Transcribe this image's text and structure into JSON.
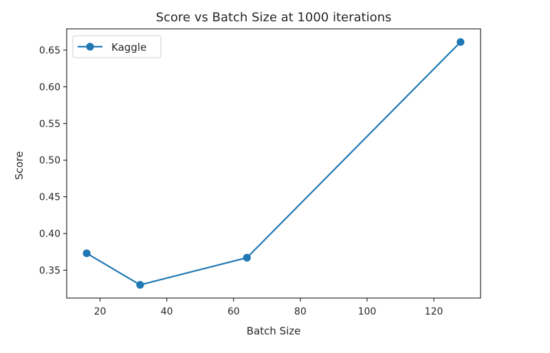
{
  "chart_data": {
    "type": "line",
    "title": "Score vs Batch Size at 1000 iterations",
    "xlabel": "Batch Size",
    "ylabel": "Score",
    "xlim": [
      10,
      134
    ],
    "ylim": [
      0.312,
      0.679
    ],
    "xticks": [
      20,
      40,
      60,
      80,
      100,
      120
    ],
    "yticks": [
      0.35,
      0.4,
      0.45,
      0.5,
      0.55,
      0.6,
      0.65
    ],
    "ytick_labels": [
      "0.35",
      "0.40",
      "0.45",
      "0.50",
      "0.55",
      "0.60",
      "0.65"
    ],
    "grid": false,
    "legend_position": "top-left",
    "series": [
      {
        "name": "Kaggle",
        "color": "#1f77b4",
        "marker": "circle",
        "x": [
          16,
          32,
          64,
          128
        ],
        "y": [
          0.373,
          0.33,
          0.367,
          0.661
        ]
      }
    ]
  }
}
